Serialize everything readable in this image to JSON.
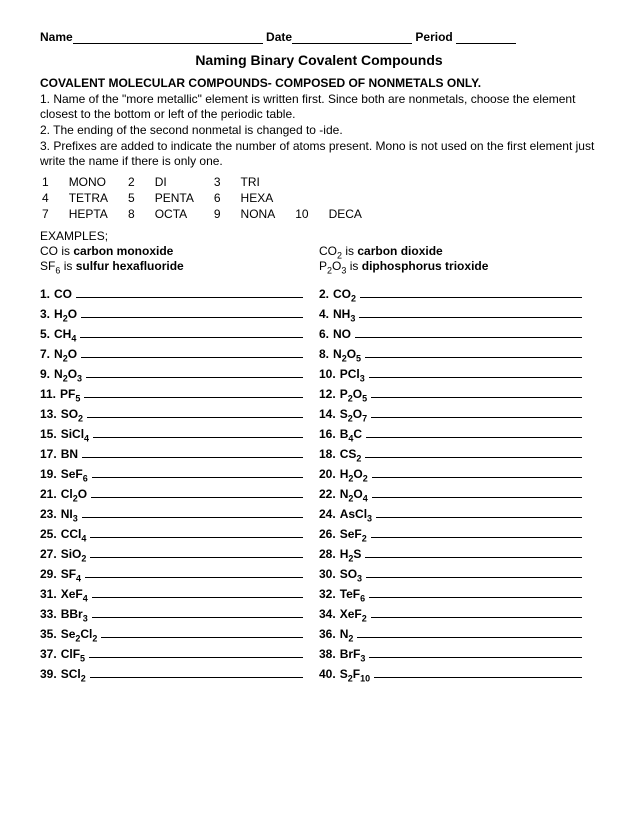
{
  "header": {
    "name_label": "Name",
    "date_label": "Date",
    "period_label": "Period"
  },
  "title": "Naming Binary Covalent Compounds",
  "subhead": "COVALENT MOLECULAR COMPOUNDS- COMPOSED OF NONMETALS ONLY.",
  "intro": [
    "1.  Name of the \"more metallic\" element is written first.  Since both are nonmetals, choose the element closest to the bottom or left of the periodic table.",
    "2.  The ending of the second nonmetal is changed to -ide.",
    "3.  Prefixes are added to indicate the number of atoms present. Mono is not used on the first element just write the name if there is only one."
  ],
  "prefixes": [
    {
      "n": "1",
      "w": "MONO"
    },
    {
      "n": "2",
      "w": "DI"
    },
    {
      "n": "3",
      "w": "TRI"
    },
    {
      "n": "4",
      "w": "TETRA"
    },
    {
      "n": "5",
      "w": "PENTA"
    },
    {
      "n": "6",
      "w": "HEXA"
    },
    {
      "n": "7",
      "w": "HEPTA"
    },
    {
      "n": "8",
      "w": "OCTA"
    },
    {
      "n": "9",
      "w": "NONA"
    },
    {
      "n": "10",
      "w": "DECA"
    }
  ],
  "examples_label": "EXAMPLES;",
  "examples_left": [
    {
      "pre": "CO is ",
      "bold": "carbon monoxide"
    },
    {
      "pre": "SF₆ is ",
      "bold": "sulfur hexafluoride"
    }
  ],
  "examples_right": [
    {
      "pre": "CO₂ is ",
      "bold": "carbon dioxide"
    },
    {
      "pre": "P₂O₃ is ",
      "bold": "diphosphorus trioxide"
    }
  ],
  "questions": [
    {
      "n": "1.",
      "f": "CO"
    },
    {
      "n": "2.",
      "f": "CO₂"
    },
    {
      "n": "3.",
      "f": "H₂O"
    },
    {
      "n": "4.",
      "f": "NH₃"
    },
    {
      "n": "5.",
      "f": "CH₄"
    },
    {
      "n": "6.",
      "f": "NO"
    },
    {
      "n": "7.",
      "f": "N₂O"
    },
    {
      "n": "8.",
      "f": "N₂O₅"
    },
    {
      "n": "9.",
      "f": "N₂O₃"
    },
    {
      "n": "10.",
      "f": "PCl₃"
    },
    {
      "n": "11.",
      "f": "PF₅"
    },
    {
      "n": "12.",
      "f": "P₂O₅"
    },
    {
      "n": "13.",
      "f": "SO₂"
    },
    {
      "n": "14.",
      "f": "S₂O₇"
    },
    {
      "n": "15.",
      "f": "SiCl₄"
    },
    {
      "n": "16.",
      "f": "B₄C"
    },
    {
      "n": "17.",
      "f": "BN"
    },
    {
      "n": "18.",
      "f": "CS₂"
    },
    {
      "n": "19.",
      "f": "SeF₆"
    },
    {
      "n": "20.",
      "f": "H₂O₂"
    },
    {
      "n": "21.",
      "f": "Cl₂O"
    },
    {
      "n": "22.",
      "f": "N₂O₄"
    },
    {
      "n": "23.",
      "f": "NI₃"
    },
    {
      "n": "24.",
      "f": "AsCl₃"
    },
    {
      "n": "25.",
      "f": "CCl₄"
    },
    {
      "n": "26.",
      "f": "SeF₂"
    },
    {
      "n": "27.",
      "f": "SiO₂"
    },
    {
      "n": "28.",
      "f": "H₂S"
    },
    {
      "n": "29.",
      "f": "SF₄"
    },
    {
      "n": "30.",
      "f": "SO₃"
    },
    {
      "n": "31.",
      "f": "XeF₄"
    },
    {
      "n": "32.",
      "f": "TeF₆"
    },
    {
      "n": "33.",
      "f": "BBr₃"
    },
    {
      "n": "34.",
      "f": "XeF₂"
    },
    {
      "n": "35.",
      "f": "Se₂Cl₂"
    },
    {
      "n": "36.",
      "f": "N₂"
    },
    {
      "n": "37.",
      "f": "ClF₅"
    },
    {
      "n": "38.",
      "f": "BrF₃"
    },
    {
      "n": "39.",
      "f": "SCl₂"
    },
    {
      "n": "40.",
      "f": "S₂F₁₀"
    }
  ]
}
